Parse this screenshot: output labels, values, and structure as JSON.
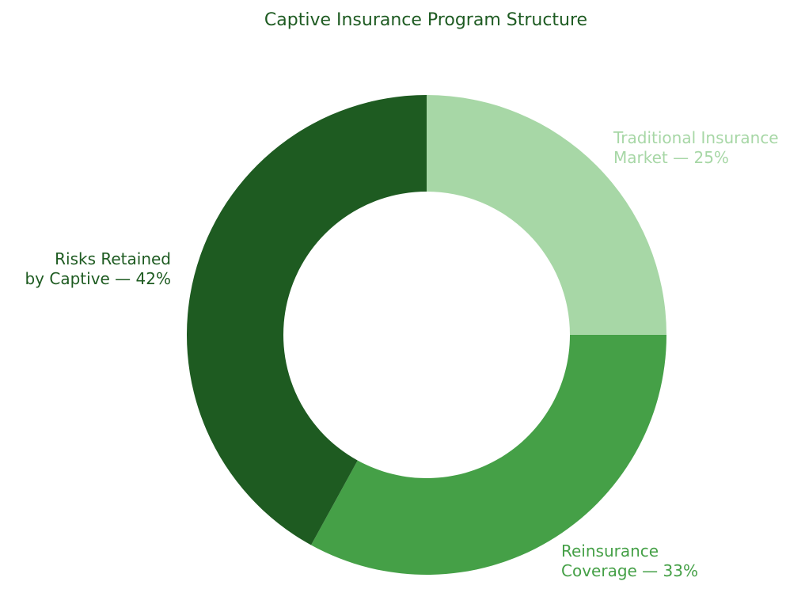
{
  "chart_data": {
    "type": "pie",
    "variant": "donut",
    "title": "Captive Insurance Program Structure",
    "title_color": "#1e5b22",
    "start": "top",
    "direction": "clockwise",
    "slices": [
      {
        "name": "Traditional Insurance Market",
        "value": 25,
        "label_lines": [
          "Traditional Insurance",
          "Market — 25%"
        ],
        "color": "#a7d7a6",
        "label_color": "#a7d7a6"
      },
      {
        "name": "Reinsurance Coverage",
        "value": 33,
        "label_lines": [
          "Reinsurance",
          "Coverage — 33%"
        ],
        "color": "#45a047",
        "label_color": "#45a047"
      },
      {
        "name": "Risks Retained by Captive",
        "value": 42,
        "label_lines": [
          "Risks Retained",
          "by Captive — 42%"
        ],
        "color": "#1e5b21",
        "label_color": "#1e5b21"
      }
    ]
  }
}
